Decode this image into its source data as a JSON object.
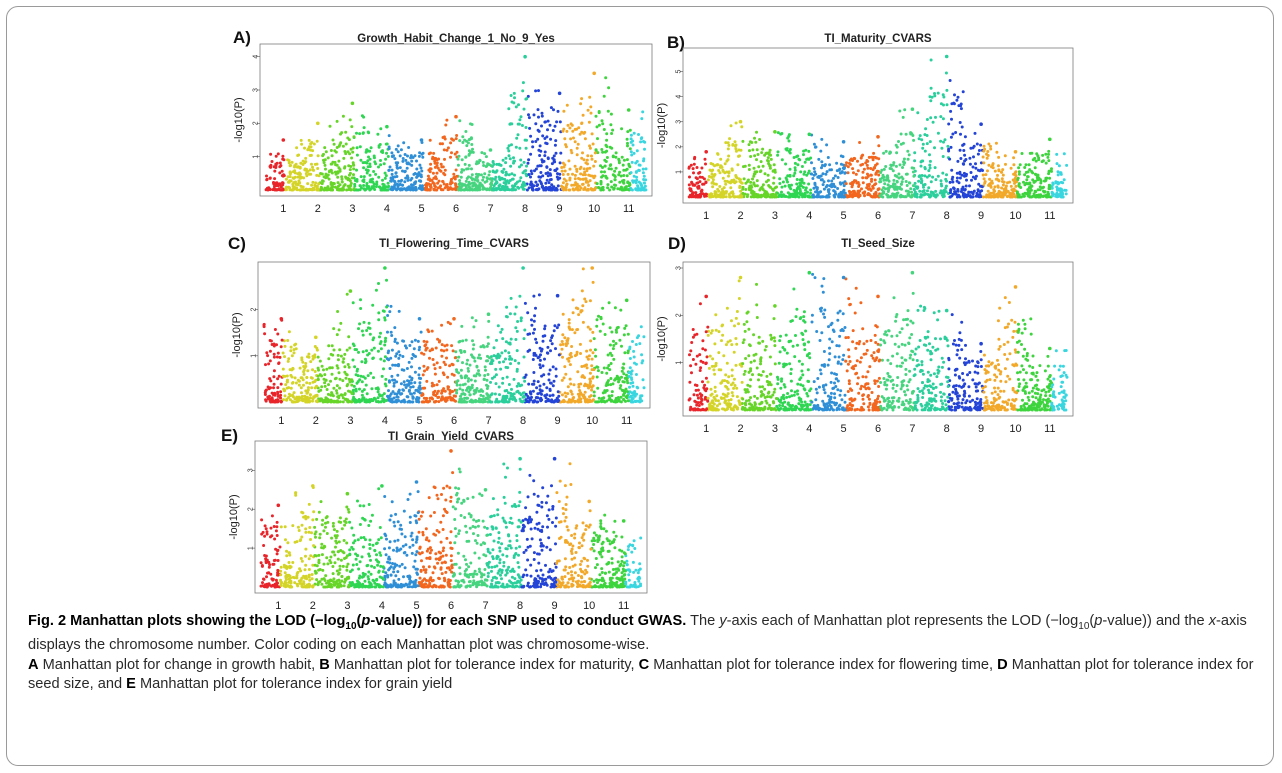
{
  "chart_data": [
    {
      "type": "scatter",
      "panel": "A)",
      "title": "Growth_Habit_Change_1_No_9_Yes",
      "ylabel": "-log10(P)",
      "xlabel": "",
      "categories": [
        "1",
        "2",
        "3",
        "4",
        "5",
        "6",
        "7",
        "8",
        "9",
        "10",
        "11"
      ],
      "yticks": [
        1,
        2,
        3,
        4
      ],
      "ylim": [
        0,
        4.2
      ],
      "peaks": [
        1.5,
        2.0,
        2.6,
        1.9,
        1.5,
        2.2,
        1.2,
        4.0,
        2.9,
        3.5,
        2.4
      ]
    },
    {
      "type": "scatter",
      "panel": "B)",
      "title": "TI_Maturity_CVARS",
      "ylabel": "-log10(P)",
      "xlabel": "",
      "categories": [
        "1",
        "2",
        "3",
        "4",
        "5",
        "6",
        "7",
        "8",
        "9",
        "10",
        "11"
      ],
      "yticks": [
        1,
        2,
        3,
        4,
        5
      ],
      "ylim": [
        0,
        5.7
      ],
      "peaks": [
        1.8,
        3.0,
        2.6,
        2.5,
        2.2,
        2.4,
        3.5,
        5.6,
        2.9,
        1.8,
        2.3
      ]
    },
    {
      "type": "scatter",
      "panel": "C)",
      "title": "TI_Flowering_Time_CVARS",
      "ylabel": "-log10(P)",
      "xlabel": "",
      "categories": [
        "1",
        "2",
        "3",
        "4",
        "5",
        "6",
        "7",
        "8",
        "9",
        "10",
        "11"
      ],
      "yticks": [
        1,
        2
      ],
      "ylim": [
        0,
        2.9
      ],
      "peaks": [
        1.8,
        1.4,
        2.4,
        2.9,
        1.8,
        1.8,
        1.9,
        2.9,
        2.3,
        2.9,
        2.2
      ]
    },
    {
      "type": "scatter",
      "panel": "D)",
      "title": "TI_Seed_Size",
      "ylabel": "-log10(P)",
      "xlabel": "",
      "categories": [
        "1",
        "2",
        "3",
        "4",
        "5",
        "6",
        "7",
        "8",
        "9",
        "10",
        "11"
      ],
      "yticks": [
        1,
        2,
        3
      ],
      "ylim": [
        0,
        3.0
      ],
      "peaks": [
        2.4,
        2.8,
        2.2,
        2.9,
        2.8,
        2.4,
        2.9,
        2.1,
        1.4,
        2.6,
        1.3
      ]
    },
    {
      "type": "scatter",
      "panel": "E)",
      "title": "TI_Grain_Yield_CVARS",
      "ylabel": "-log10(P)",
      "xlabel": "",
      "categories": [
        "1",
        "2",
        "3",
        "4",
        "5",
        "6",
        "7",
        "8",
        "9",
        "10",
        "11"
      ],
      "yticks": [
        1,
        2,
        3
      ],
      "ylim": [
        0,
        3.6
      ],
      "peaks": [
        2.1,
        2.6,
        2.4,
        2.6,
        2.7,
        3.5,
        2.5,
        3.3,
        3.3,
        2.2,
        1.7
      ]
    }
  ],
  "chromosome_colors": [
    "#e8252a",
    "#d4d428",
    "#66d528",
    "#2ed652",
    "#2f8fd6",
    "#f2661e",
    "#47d47f",
    "#2acf9b",
    "#2344d6",
    "#f2a92a",
    "#3dd43d",
    "#39d6e0"
  ],
  "panel_colors": {
    "A)": [
      "#e8252a",
      "#d4d428",
      "#66d528",
      "#2ed652",
      "#2f8fd6",
      "#f2661e",
      "#47d47f",
      "#2acf9b",
      "#2344d6",
      "#f2a92a",
      "#3dd43d",
      "#39d6e0"
    ]
  },
  "caption": {
    "title": "Fig. 2 Manhattan plots showing the LOD (−log",
    "title_sub": "10",
    "title_mid": "(",
    "title_p": "p",
    "title_end": "-value)) for each SNP used to conduct GWAS.",
    "line1_a": " The ",
    "line1_y": "y",
    "line1_b": "-axis each of Manhattan plot represents the LOD (−log",
    "line1_sub": "10",
    "line1_c": "(",
    "line1_p": "p",
    "line1_d": "-value)) and the ",
    "line1_x": "x",
    "line1_e": "-axis displays the chromosome number. Color coding on each Manhattan plot was chromosome-wise.",
    "A": "A",
    "A_text": " Manhattan plot for change in growth habit, ",
    "B": "B",
    "B_text": " Manhattan plot for tolerance index for maturity, ",
    "C": "C",
    "C_text": " Manhattan plot for tolerance index for flowering time, ",
    "D": "D",
    "D_text": " Manhattan plot for tolerance index for seed size, and ",
    "E": "E",
    "E_text": " Manhattan plot for tolerance index for grain yield"
  }
}
